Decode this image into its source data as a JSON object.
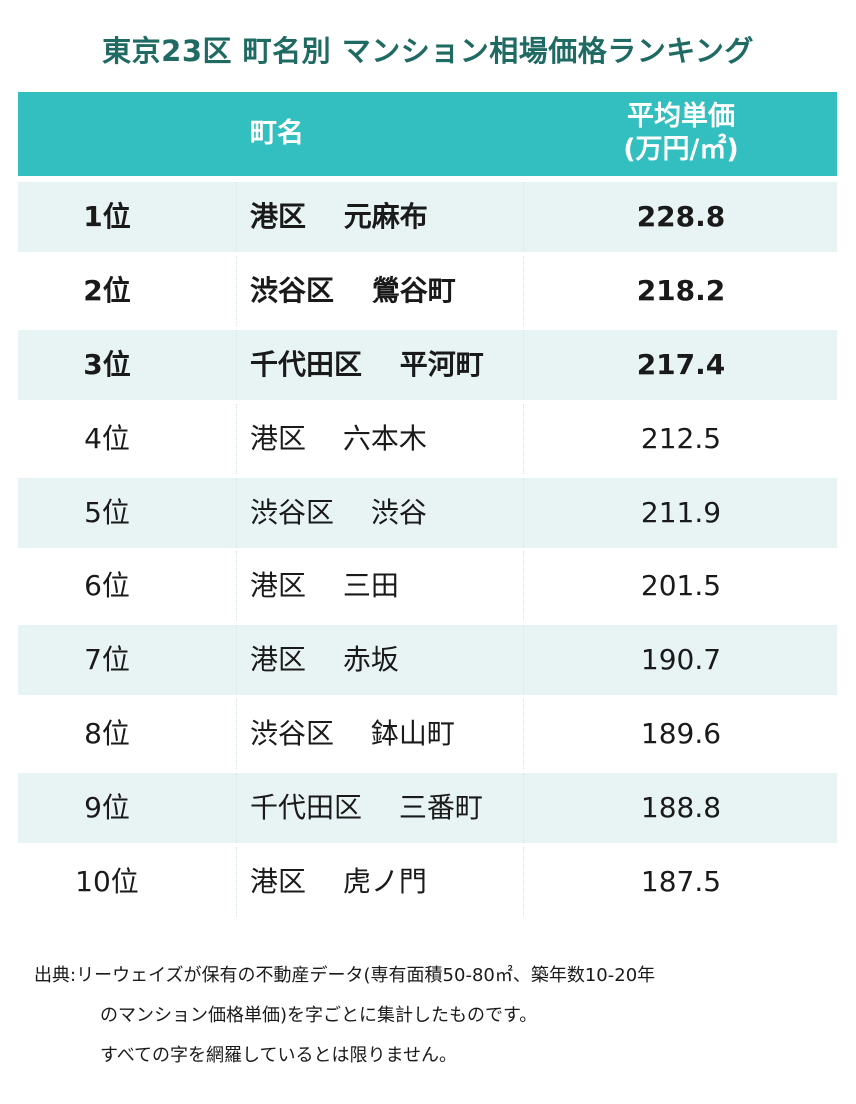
{
  "title": "東京23区 町名別 マンション相場価格ランキング",
  "header": {
    "name_label": "町名",
    "price_label_line1": "平均単価",
    "price_label_line2": "(万円/㎡)"
  },
  "footer": {
    "line1": "出典:リーウェイズが保有の不動産データ(専有面積50-80㎡、築年数10-20年",
    "line2": "のマンション価格単価)を字ごとに集計したものです。",
    "line3": "すべての字を網羅しているとは限りません。"
  },
  "chart_data": {
    "type": "table",
    "title": "東京23区 町名別 マンション相場価格ランキング",
    "columns": [
      "",
      "町名",
      "平均単価(万円/㎡)"
    ],
    "rows": [
      {
        "rank": "1位",
        "name": "港区 元麻布",
        "price": "228.8"
      },
      {
        "rank": "2位",
        "name": "渋谷区 鶯谷町",
        "price": "218.2"
      },
      {
        "rank": "3位",
        "name": "千代田区 平河町",
        "price": "217.4"
      },
      {
        "rank": "4位",
        "name": "港区 六本木",
        "price": "212.5"
      },
      {
        "rank": "5位",
        "name": "渋谷区 渋谷",
        "price": "211.9"
      },
      {
        "rank": "6位",
        "name": "港区 三田",
        "price": "201.5"
      },
      {
        "rank": "7位",
        "name": "港区 赤坂",
        "price": "190.7"
      },
      {
        "rank": "8位",
        "name": "渋谷区 鉢山町",
        "price": "189.6"
      },
      {
        "rank": "9位",
        "name": "千代田区 三番町",
        "price": "188.8"
      },
      {
        "rank": "10位",
        "name": "港区 虎ノ門",
        "price": "187.5"
      }
    ],
    "colors": {
      "title": "#1f6a62",
      "header_bg": "#33bfbf",
      "row_shade": "#e8f4f4"
    }
  }
}
